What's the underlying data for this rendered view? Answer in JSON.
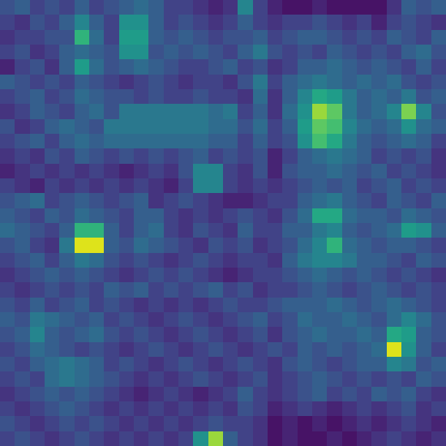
{
  "chart_data": {
    "type": "heatmap",
    "color": "Viridis",
    "tick_labels": false,
    "color_range": [
      0,
      1
    ],
    "cells": [
      [
        0.25,
        0.3,
        0.2,
        0.25,
        0.2,
        0.3,
        0.2,
        0.25,
        0.3,
        0.35,
        0.3,
        0.2,
        0.2,
        0.15,
        0.1,
        0.15,
        0.45,
        0.2,
        0.1,
        0.05,
        0.05,
        0.1,
        0.05,
        0.05,
        0.05,
        0.05,
        0.15,
        0.3,
        0.25,
        0.3
      ],
      [
        0.2,
        0.15,
        0.25,
        0.2,
        0.3,
        0.45,
        0.3,
        0.2,
        0.5,
        0.5,
        0.3,
        0.2,
        0.25,
        0.2,
        0.15,
        0.2,
        0.3,
        0.2,
        0.15,
        0.2,
        0.2,
        0.25,
        0.2,
        0.15,
        0.2,
        0.1,
        0.2,
        0.25,
        0.2,
        0.15
      ],
      [
        0.15,
        0.2,
        0.2,
        0.25,
        0.25,
        0.65,
        0.35,
        0.2,
        0.55,
        0.55,
        0.3,
        0.25,
        0.3,
        0.25,
        0.2,
        0.25,
        0.25,
        0.3,
        0.2,
        0.25,
        0.3,
        0.3,
        0.25,
        0.2,
        0.25,
        0.2,
        0.3,
        0.25,
        0.2,
        0.3
      ],
      [
        0.2,
        0.25,
        0.15,
        0.2,
        0.3,
        0.35,
        0.3,
        0.25,
        0.5,
        0.5,
        0.25,
        0.3,
        0.25,
        0.3,
        0.25,
        0.2,
        0.3,
        0.4,
        0.25,
        0.2,
        0.25,
        0.2,
        0.3,
        0.25,
        0.2,
        0.25,
        0.2,
        0.3,
        0.35,
        0.25
      ],
      [
        0.1,
        0.2,
        0.25,
        0.15,
        0.3,
        0.55,
        0.35,
        0.25,
        0.3,
        0.35,
        0.3,
        0.25,
        0.2,
        0.2,
        0.25,
        0.3,
        0.2,
        0.25,
        0.15,
        0.2,
        0.3,
        0.3,
        0.35,
        0.3,
        0.25,
        0.3,
        0.25,
        0.2,
        0.3,
        0.2
      ],
      [
        0.3,
        0.25,
        0.2,
        0.25,
        0.2,
        0.3,
        0.25,
        0.2,
        0.15,
        0.2,
        0.25,
        0.2,
        0.15,
        0.2,
        0.2,
        0.15,
        0.25,
        0.4,
        0.2,
        0.3,
        0.35,
        0.4,
        0.35,
        0.3,
        0.35,
        0.3,
        0.35,
        0.25,
        0.2,
        0.25
      ],
      [
        0.2,
        0.25,
        0.3,
        0.2,
        0.25,
        0.35,
        0.3,
        0.25,
        0.25,
        0.2,
        0.25,
        0.2,
        0.2,
        0.25,
        0.2,
        0.2,
        0.15,
        0.35,
        0.15,
        0.3,
        0.45,
        0.6,
        0.55,
        0.4,
        0.3,
        0.35,
        0.3,
        0.4,
        0.25,
        0.3
      ],
      [
        0.15,
        0.2,
        0.3,
        0.25,
        0.2,
        0.3,
        0.35,
        0.25,
        0.4,
        0.4,
        0.4,
        0.4,
        0.4,
        0.4,
        0.35,
        0.4,
        0.2,
        0.3,
        0.15,
        0.35,
        0.5,
        0.85,
        0.75,
        0.4,
        0.3,
        0.35,
        0.45,
        0.8,
        0.45,
        0.25
      ],
      [
        0.25,
        0.15,
        0.2,
        0.3,
        0.35,
        0.3,
        0.25,
        0.4,
        0.4,
        0.4,
        0.4,
        0.4,
        0.4,
        0.4,
        0.35,
        0.35,
        0.25,
        0.35,
        0.2,
        0.3,
        0.55,
        0.75,
        0.7,
        0.45,
        0.35,
        0.3,
        0.35,
        0.5,
        0.35,
        0.3
      ],
      [
        0.2,
        0.25,
        0.3,
        0.2,
        0.3,
        0.35,
        0.3,
        0.35,
        0.35,
        0.35,
        0.35,
        0.35,
        0.35,
        0.35,
        0.3,
        0.3,
        0.2,
        0.3,
        0.2,
        0.25,
        0.5,
        0.7,
        0.6,
        0.4,
        0.3,
        0.25,
        0.3,
        0.35,
        0.3,
        0.2
      ],
      [
        0.15,
        0.2,
        0.15,
        0.25,
        0.2,
        0.3,
        0.25,
        0.2,
        0.25,
        0.2,
        0.25,
        0.2,
        0.25,
        0.3,
        0.2,
        0.25,
        0.2,
        0.25,
        0.1,
        0.2,
        0.3,
        0.35,
        0.4,
        0.35,
        0.3,
        0.2,
        0.25,
        0.2,
        0.25,
        0.15
      ],
      [
        0.1,
        0.15,
        0.2,
        0.15,
        0.2,
        0.15,
        0.2,
        0.15,
        0.1,
        0.15,
        0.2,
        0.15,
        0.25,
        0.45,
        0.45,
        0.2,
        0.15,
        0.25,
        0.1,
        0.25,
        0.3,
        0.3,
        0.35,
        0.3,
        0.25,
        0.3,
        0.2,
        0.25,
        0.2,
        0.15
      ],
      [
        0.2,
        0.15,
        0.1,
        0.2,
        0.15,
        0.2,
        0.15,
        0.2,
        0.15,
        0.2,
        0.15,
        0.1,
        0.2,
        0.45,
        0.45,
        0.2,
        0.15,
        0.2,
        0.15,
        0.2,
        0.25,
        0.3,
        0.25,
        0.3,
        0.2,
        0.25,
        0.3,
        0.2,
        0.25,
        0.2
      ],
      [
        0.25,
        0.3,
        0.35,
        0.2,
        0.25,
        0.3,
        0.25,
        0.2,
        0.25,
        0.3,
        0.15,
        0.2,
        0.25,
        0.2,
        0.15,
        0.1,
        0.1,
        0.15,
        0.2,
        0.2,
        0.3,
        0.35,
        0.4,
        0.3,
        0.25,
        0.2,
        0.3,
        0.25,
        0.2,
        0.3
      ],
      [
        0.3,
        0.25,
        0.2,
        0.3,
        0.25,
        0.35,
        0.3,
        0.25,
        0.2,
        0.3,
        0.3,
        0.2,
        0.15,
        0.2,
        0.15,
        0.2,
        0.25,
        0.2,
        0.15,
        0.25,
        0.35,
        0.6,
        0.6,
        0.35,
        0.3,
        0.3,
        0.25,
        0.35,
        0.3,
        0.25
      ],
      [
        0.35,
        0.3,
        0.25,
        0.2,
        0.3,
        0.65,
        0.65,
        0.3,
        0.2,
        0.3,
        0.35,
        0.2,
        0.15,
        0.25,
        0.2,
        0.15,
        0.3,
        0.2,
        0.2,
        0.3,
        0.3,
        0.4,
        0.45,
        0.3,
        0.25,
        0.3,
        0.35,
        0.55,
        0.5,
        0.3
      ],
      [
        0.25,
        0.3,
        0.2,
        0.15,
        0.4,
        0.95,
        0.95,
        0.3,
        0.25,
        0.35,
        0.3,
        0.25,
        0.2,
        0.15,
        0.25,
        0.2,
        0.25,
        0.15,
        0.2,
        0.25,
        0.35,
        0.45,
        0.65,
        0.35,
        0.3,
        0.25,
        0.3,
        0.3,
        0.25,
        0.2
      ],
      [
        0.2,
        0.25,
        0.3,
        0.2,
        0.3,
        0.4,
        0.35,
        0.25,
        0.2,
        0.25,
        0.2,
        0.15,
        0.2,
        0.25,
        0.2,
        0.15,
        0.2,
        0.2,
        0.15,
        0.3,
        0.4,
        0.45,
        0.45,
        0.4,
        0.3,
        0.3,
        0.25,
        0.2,
        0.3,
        0.25
      ],
      [
        0.15,
        0.2,
        0.25,
        0.3,
        0.25,
        0.3,
        0.25,
        0.2,
        0.15,
        0.2,
        0.25,
        0.2,
        0.25,
        0.2,
        0.15,
        0.1,
        0.15,
        0.2,
        0.2,
        0.25,
        0.3,
        0.35,
        0.3,
        0.25,
        0.3,
        0.25,
        0.2,
        0.25,
        0.2,
        0.15
      ],
      [
        0.2,
        0.15,
        0.2,
        0.25,
        0.2,
        0.25,
        0.2,
        0.3,
        0.25,
        0.3,
        0.2,
        0.25,
        0.2,
        0.25,
        0.3,
        0.2,
        0.25,
        0.15,
        0.2,
        0.2,
        0.25,
        0.3,
        0.25,
        0.2,
        0.25,
        0.3,
        0.25,
        0.2,
        0.25,
        0.2
      ],
      [
        0.25,
        0.2,
        0.3,
        0.2,
        0.25,
        0.3,
        0.2,
        0.25,
        0.2,
        0.15,
        0.2,
        0.15,
        0.2,
        0.15,
        0.2,
        0.25,
        0.2,
        0.2,
        0.25,
        0.3,
        0.3,
        0.3,
        0.35,
        0.3,
        0.25,
        0.3,
        0.35,
        0.3,
        0.25,
        0.2
      ],
      [
        0.3,
        0.25,
        0.4,
        0.35,
        0.3,
        0.25,
        0.3,
        0.2,
        0.25,
        0.2,
        0.15,
        0.2,
        0.25,
        0.2,
        0.15,
        0.2,
        0.25,
        0.3,
        0.2,
        0.25,
        0.35,
        0.3,
        0.3,
        0.35,
        0.3,
        0.25,
        0.35,
        0.45,
        0.35,
        0.25
      ],
      [
        0.25,
        0.3,
        0.45,
        0.3,
        0.25,
        0.3,
        0.35,
        0.25,
        0.2,
        0.25,
        0.2,
        0.15,
        0.2,
        0.25,
        0.2,
        0.15,
        0.2,
        0.25,
        0.15,
        0.25,
        0.3,
        0.35,
        0.3,
        0.3,
        0.35,
        0.3,
        0.6,
        0.55,
        0.3,
        0.25
      ],
      [
        0.2,
        0.25,
        0.35,
        0.3,
        0.25,
        0.2,
        0.25,
        0.2,
        0.15,
        0.2,
        0.25,
        0.2,
        0.15,
        0.2,
        0.25,
        0.2,
        0.15,
        0.2,
        0.25,
        0.2,
        0.3,
        0.25,
        0.3,
        0.25,
        0.3,
        0.35,
        0.95,
        0.5,
        0.3,
        0.2
      ],
      [
        0.25,
        0.2,
        0.3,
        0.35,
        0.4,
        0.35,
        0.3,
        0.2,
        0.25,
        0.2,
        0.15,
        0.2,
        0.25,
        0.2,
        0.15,
        0.2,
        0.25,
        0.2,
        0.15,
        0.25,
        0.3,
        0.25,
        0.2,
        0.25,
        0.3,
        0.3,
        0.45,
        0.4,
        0.25,
        0.3
      ],
      [
        0.2,
        0.25,
        0.2,
        0.35,
        0.4,
        0.35,
        0.3,
        0.25,
        0.2,
        0.15,
        0.2,
        0.15,
        0.2,
        0.25,
        0.2,
        0.15,
        0.2,
        0.25,
        0.15,
        0.2,
        0.25,
        0.3,
        0.25,
        0.2,
        0.25,
        0.2,
        0.25,
        0.2,
        0.3,
        0.25
      ],
      [
        0.15,
        0.2,
        0.25,
        0.3,
        0.25,
        0.3,
        0.25,
        0.2,
        0.15,
        0.1,
        0.15,
        0.2,
        0.15,
        0.1,
        0.15,
        0.2,
        0.3,
        0.2,
        0.15,
        0.2,
        0.25,
        0.3,
        0.2,
        0.25,
        0.2,
        0.3,
        0.25,
        0.3,
        0.2,
        0.15
      ],
      [
        0.2,
        0.15,
        0.2,
        0.25,
        0.3,
        0.25,
        0.2,
        0.15,
        0.2,
        0.15,
        0.2,
        0.15,
        0.2,
        0.15,
        0.2,
        0.15,
        0.25,
        0.2,
        0.1,
        0.15,
        0.2,
        0.15,
        0.1,
        0.15,
        0.2,
        0.15,
        0.2,
        0.25,
        0.15,
        0.2
      ],
      [
        0.25,
        0.2,
        0.15,
        0.2,
        0.25,
        0.2,
        0.25,
        0.2,
        0.15,
        0.2,
        0.15,
        0.2,
        0.15,
        0.2,
        0.25,
        0.2,
        0.2,
        0.15,
        0.05,
        0.1,
        0.05,
        0.1,
        0.05,
        0.1,
        0.15,
        0.1,
        0.15,
        0.2,
        0.15,
        0.1
      ],
      [
        0.2,
        0.25,
        0.2,
        0.15,
        0.2,
        0.25,
        0.2,
        0.15,
        0.2,
        0.15,
        0.2,
        0.15,
        0.2,
        0.5,
        0.85,
        0.3,
        0.2,
        0.15,
        0.05,
        0.1,
        0.05,
        0.05,
        0.1,
        0.05,
        0.1,
        0.15,
        0.2,
        0.15,
        0.1,
        0.15
      ]
    ]
  }
}
